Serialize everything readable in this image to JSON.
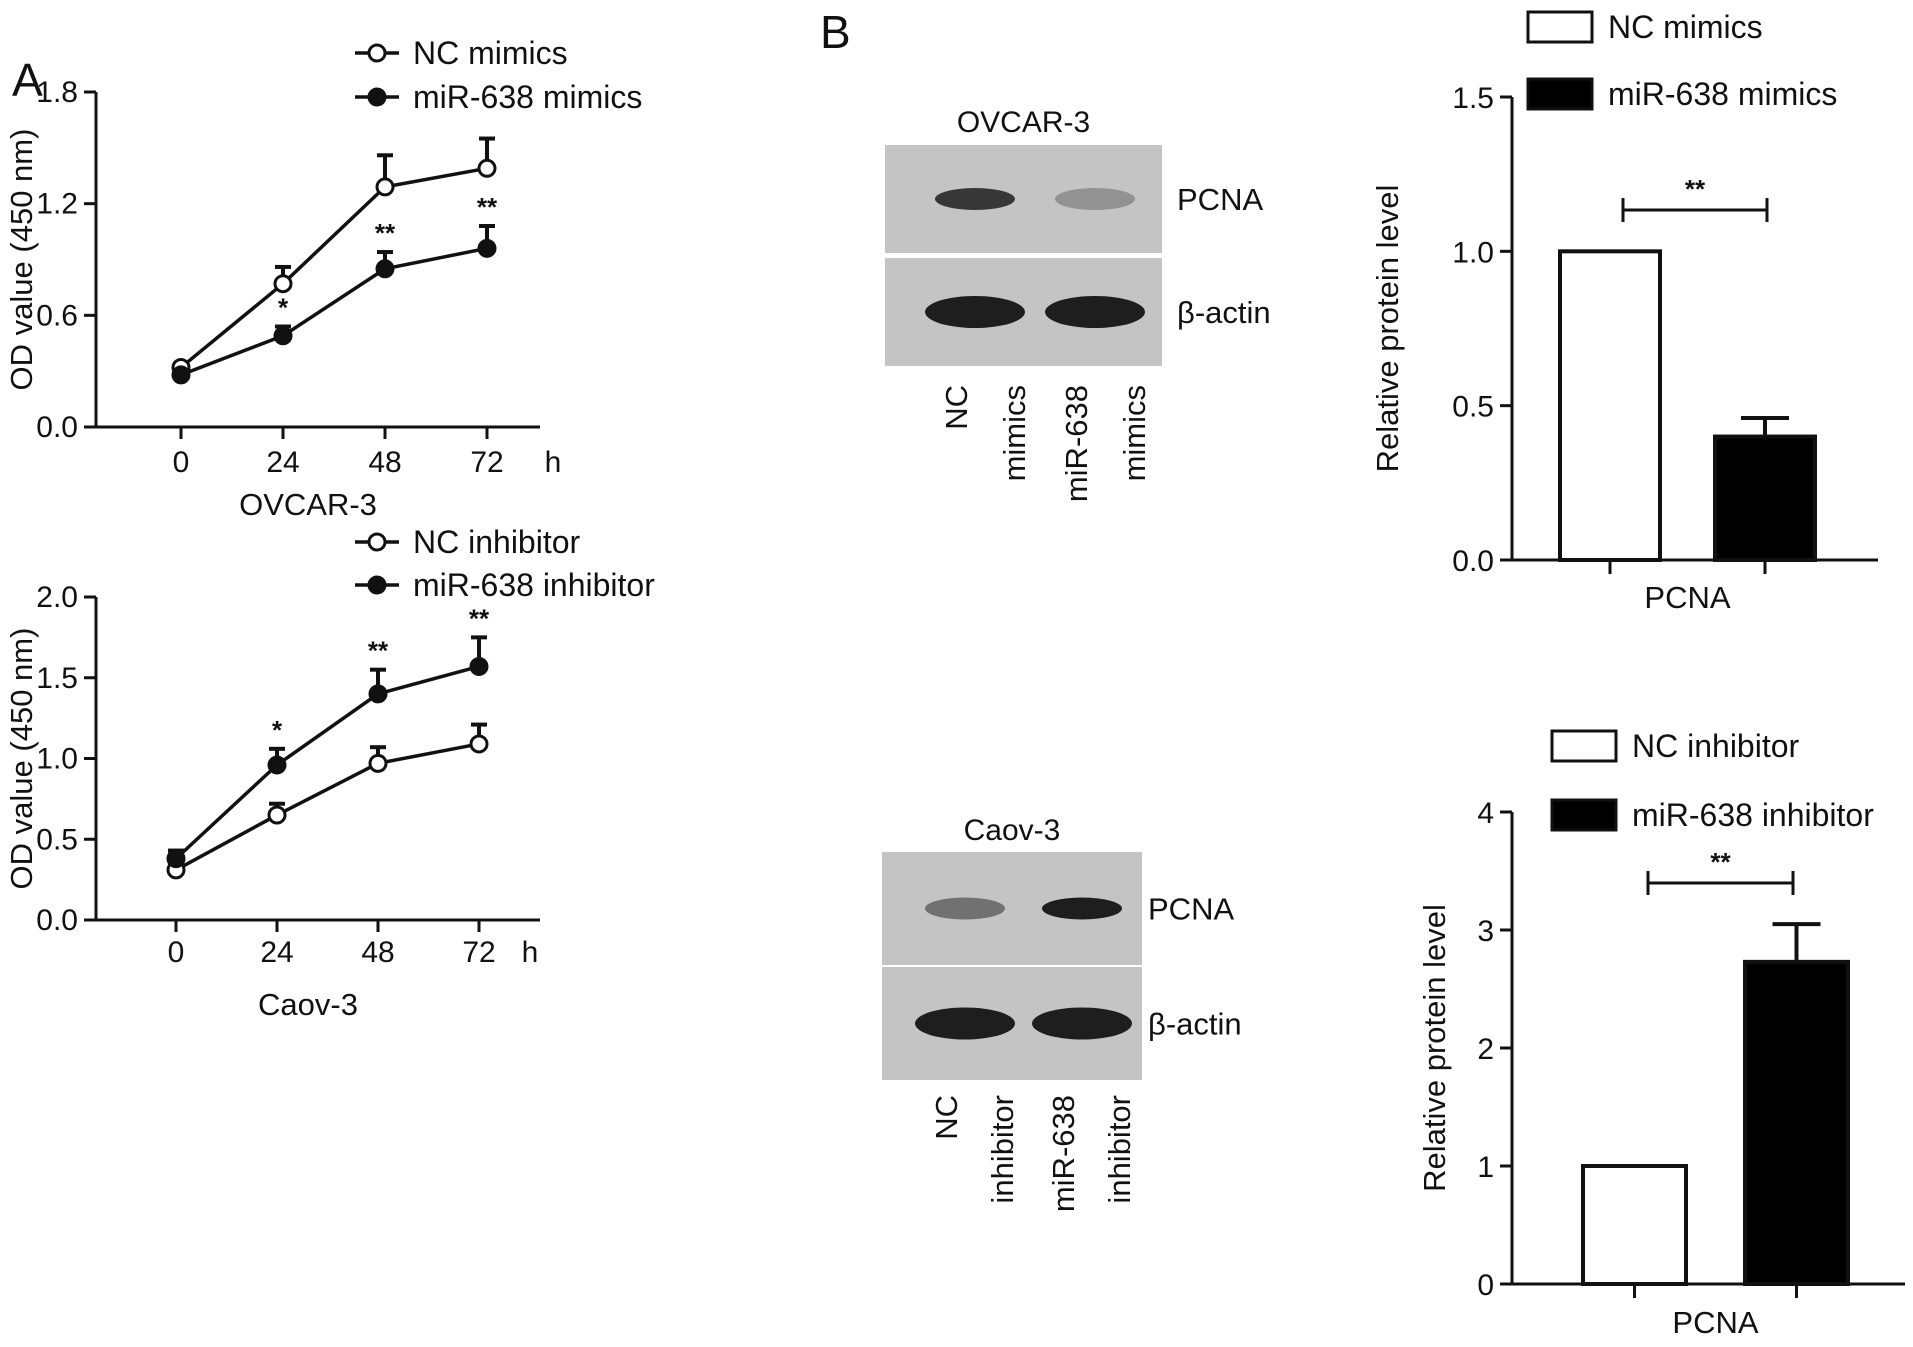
{
  "panels": {
    "a": "A",
    "b": "B"
  },
  "blots": [
    {
      "title": "OVCAR-3",
      "bands": [
        "PCNA",
        "β-actin"
      ],
      "lanes": [
        [
          "NC",
          "mimics"
        ],
        [
          "miR-638",
          "mimics"
        ]
      ],
      "band_intensity": {
        "PCNA": [
          0.85,
          0.3
        ],
        "β-actin": [
          1.0,
          1.0
        ]
      }
    },
    {
      "title": "Caov-3",
      "bands": [
        "PCNA",
        "β-actin"
      ],
      "lanes": [
        [
          "NC",
          "inhibitor"
        ],
        [
          "miR-638",
          "inhibitor"
        ]
      ],
      "band_intensity": {
        "PCNA": [
          0.5,
          1.0
        ],
        "β-actin": [
          1.0,
          1.0
        ]
      }
    }
  ],
  "chart_data": [
    {
      "type": "line",
      "title": "",
      "xlabel": "OVCAR-3",
      "x_unit": "h",
      "ylabel": "OD value (450 nm)",
      "x": [
        0,
        24,
        48,
        72
      ],
      "ylim": [
        0,
        1.8
      ],
      "yticks": [
        "0.0",
        "0.6",
        "1.2",
        "1.8"
      ],
      "series": [
        {
          "name": "NC mimics",
          "marker": "open-circle",
          "values": [
            0.32,
            0.77,
            1.29,
            1.39
          ],
          "errors": [
            0.02,
            0.09,
            0.17,
            0.16
          ]
        },
        {
          "name": "miR-638 mimics",
          "marker": "filled-circle",
          "values": [
            0.28,
            0.49,
            0.85,
            0.96
          ],
          "errors": [
            0.02,
            0.05,
            0.09,
            0.12
          ]
        }
      ],
      "annotations": [
        "",
        "*",
        "**",
        "**"
      ]
    },
    {
      "type": "line",
      "title": "",
      "xlabel": "Caov-3",
      "x_unit": "h",
      "ylabel": "OD value (450 nm)",
      "x": [
        0,
        24,
        48,
        72
      ],
      "ylim": [
        0,
        2.0
      ],
      "yticks": [
        "0.0",
        "0.5",
        "1.0",
        "1.5",
        "2.0"
      ],
      "series": [
        {
          "name": "NC inhibitor",
          "marker": "open-circle",
          "values": [
            0.31,
            0.65,
            0.97,
            1.09
          ],
          "errors": [
            0.03,
            0.07,
            0.1,
            0.12
          ]
        },
        {
          "name": "miR-638 inhibitor",
          "marker": "filled-circle",
          "values": [
            0.38,
            0.96,
            1.4,
            1.57
          ],
          "errors": [
            0.05,
            0.1,
            0.15,
            0.18
          ]
        }
      ],
      "annotations": [
        "",
        "*",
        "**",
        "**"
      ]
    },
    {
      "type": "bar",
      "title": "",
      "xlabel": "PCNA",
      "ylabel": "Relative protein level",
      "categories": [
        "PCNA"
      ],
      "ylim": [
        0,
        1.5
      ],
      "yticks": [
        "0.0",
        "0.5",
        "1.0",
        "1.5"
      ],
      "series": [
        {
          "name": "NC mimics",
          "fill": "open",
          "values": [
            1.0
          ],
          "errors": [
            0
          ]
        },
        {
          "name": "miR-638 mimics",
          "fill": "solid",
          "values": [
            0.4
          ],
          "errors": [
            0.06
          ]
        }
      ],
      "annotation": "**"
    },
    {
      "type": "bar",
      "title": "",
      "xlabel": "PCNA",
      "ylabel": "Relative protein level",
      "categories": [
        "PCNA"
      ],
      "ylim": [
        0,
        4
      ],
      "yticks": [
        "0",
        "1",
        "2",
        "3",
        "4"
      ],
      "series": [
        {
          "name": "NC inhibitor",
          "fill": "open",
          "values": [
            1.0
          ],
          "errors": [
            0
          ]
        },
        {
          "name": "miR-638 inhibitor",
          "fill": "solid",
          "values": [
            2.73
          ],
          "errors": [
            0.32
          ]
        }
      ],
      "annotation": "**"
    }
  ],
  "colors": {
    "ink": "#111111",
    "bar_solid": "#000000",
    "bar_open": "#ffffff",
    "blot_bg": "#c4c4c4",
    "band": "#151515"
  }
}
